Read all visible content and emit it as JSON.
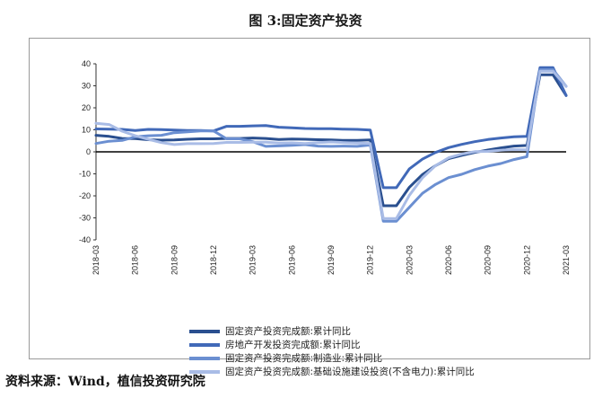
{
  "title": "图 3:固定资产投资",
  "source": "资料来源：Wind，植信投资研究院",
  "chart_data": {
    "type": "line",
    "ylim": [
      -40,
      40
    ],
    "yticks": [
      40,
      30,
      20,
      10,
      0,
      -10,
      -20,
      -30,
      -40
    ],
    "xtick_labels": [
      "2018-03",
      "2018-06",
      "2018-09",
      "2018-12",
      "2019-03",
      "2019-06",
      "2019-09",
      "2019-12",
      "2020-03",
      "2020-06",
      "2020-09",
      "2020-12",
      "2021-03"
    ],
    "x": [
      "2018-03",
      "2018-04",
      "2018-05",
      "2018-06",
      "2018-07",
      "2018-08",
      "2018-09",
      "2018-10",
      "2018-11",
      "2018-12",
      "2019-01",
      "2019-02",
      "2019-03",
      "2019-04",
      "2019-05",
      "2019-06",
      "2019-07",
      "2019-08",
      "2019-09",
      "2019-10",
      "2019-11",
      "2019-12",
      "2020-01",
      "2020-02",
      "2020-03",
      "2020-04",
      "2020-05",
      "2020-06",
      "2020-07",
      "2020-08",
      "2020-09",
      "2020-10",
      "2020-11",
      "2020-12",
      "2021-01",
      "2021-02",
      "2021-03"
    ],
    "series": [
      {
        "name": "固定资产投资完成额:累计同比",
        "color": "#2a4f8f",
        "width": 3,
        "values": [
          7.5,
          7.0,
          6.1,
          6.0,
          5.5,
          5.3,
          5.4,
          5.7,
          5.9,
          5.9,
          6.1,
          6.1,
          6.3,
          6.1,
          5.6,
          5.8,
          5.7,
          5.5,
          5.4,
          5.2,
          5.2,
          5.4,
          -24.5,
          -24.5,
          -16.1,
          -10.3,
          -6.3,
          -3.1,
          -1.6,
          -0.3,
          0.8,
          1.8,
          2.6,
          2.9,
          35.0,
          35.0,
          25.6
        ]
      },
      {
        "name": "房地产开发投资完成额:累计同比",
        "color": "#4169b8",
        "width": 3,
        "values": [
          10.4,
          10.3,
          10.2,
          9.7,
          10.2,
          10.1,
          9.9,
          9.7,
          9.7,
          9.5,
          11.6,
          11.6,
          11.8,
          11.9,
          11.2,
          10.9,
          10.6,
          10.5,
          10.5,
          10.3,
          10.2,
          9.9,
          -16.3,
          -16.3,
          -7.7,
          -3.3,
          -0.3,
          1.9,
          3.4,
          4.6,
          5.6,
          6.3,
          6.8,
          7.0,
          38.3,
          38.3,
          25.6
        ]
      },
      {
        "name": "固定资产投资完成额:制造业:累计同比",
        "color": "#6b8fd1",
        "width": 3,
        "values": [
          3.8,
          4.8,
          5.2,
          6.8,
          7.3,
          7.5,
          8.7,
          9.1,
          9.5,
          9.5,
          5.9,
          5.9,
          4.6,
          2.5,
          2.7,
          3.0,
          3.3,
          2.6,
          2.5,
          2.6,
          2.5,
          3.1,
          -31.5,
          -31.5,
          -25.2,
          -18.8,
          -14.8,
          -11.7,
          -10.2,
          -8.1,
          -6.5,
          -5.3,
          -3.5,
          -2.2,
          37.3,
          37.3,
          29.8
        ]
      },
      {
        "name": "固定资产投资完成额:基础设施建设投资(不含电力):累计同比",
        "color": "#a9bce6",
        "width": 3,
        "values": [
          13.0,
          12.4,
          9.4,
          7.3,
          5.7,
          4.2,
          3.3,
          3.7,
          3.7,
          3.8,
          4.3,
          4.3,
          4.4,
          4.4,
          4.0,
          4.1,
          3.8,
          4.2,
          4.5,
          4.2,
          4.0,
          3.8,
          -30.3,
          -30.3,
          -19.7,
          -11.8,
          -6.3,
          -2.7,
          -1.0,
          0.1,
          0.2,
          0.7,
          1.0,
          0.9,
          36.6,
          36.6,
          29.7
        ]
      }
    ],
    "legend_position": "bottom"
  }
}
